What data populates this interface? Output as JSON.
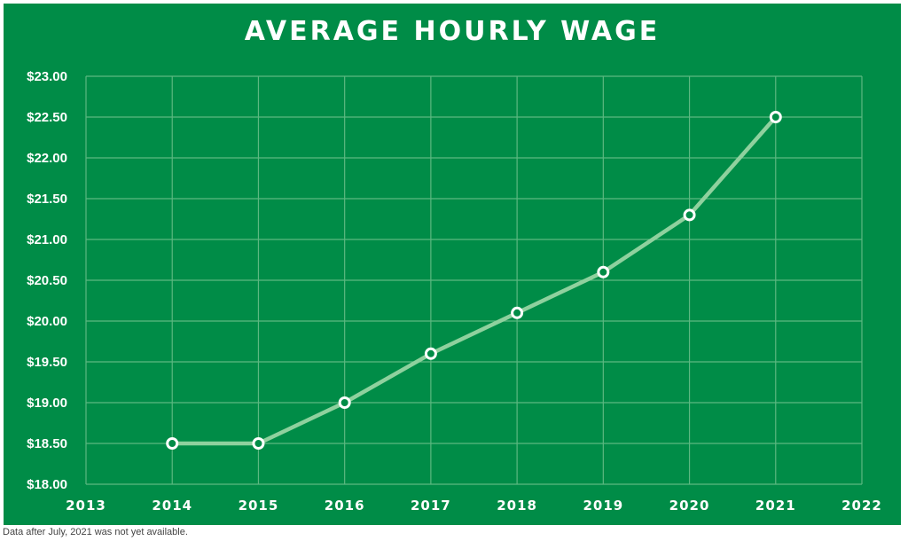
{
  "chart_data": {
    "type": "line",
    "title": "AVERAGE HOURLY WAGE",
    "xlabel": "",
    "ylabel": "",
    "x_ticks": [
      "2013",
      "2014",
      "2015",
      "2016",
      "2017",
      "2018",
      "2019",
      "2020",
      "2021",
      "2022"
    ],
    "y_ticks": [
      "$18.00",
      "$18.50",
      "$19.00",
      "$19.50",
      "$20.00",
      "$20.50",
      "$21.00",
      "$21.50",
      "$22.00",
      "$22.50",
      "$23.00"
    ],
    "xlim": [
      2013,
      2022
    ],
    "ylim": [
      18.0,
      23.0
    ],
    "grid": true,
    "series": [
      {
        "x": [
          2014,
          2015,
          2016,
          2017,
          2018,
          2019,
          2020,
          2021
        ],
        "values": [
          18.5,
          18.5,
          19.0,
          19.6,
          20.1,
          20.6,
          21.3,
          22.5
        ]
      }
    ],
    "colors": {
      "background": "#008c47",
      "line": "#8fd19e",
      "marker_stroke": "#ffffff",
      "grid": "#5cb881",
      "text": "#ffffff"
    }
  },
  "footnote": "Data after July, 2021 was not yet available."
}
